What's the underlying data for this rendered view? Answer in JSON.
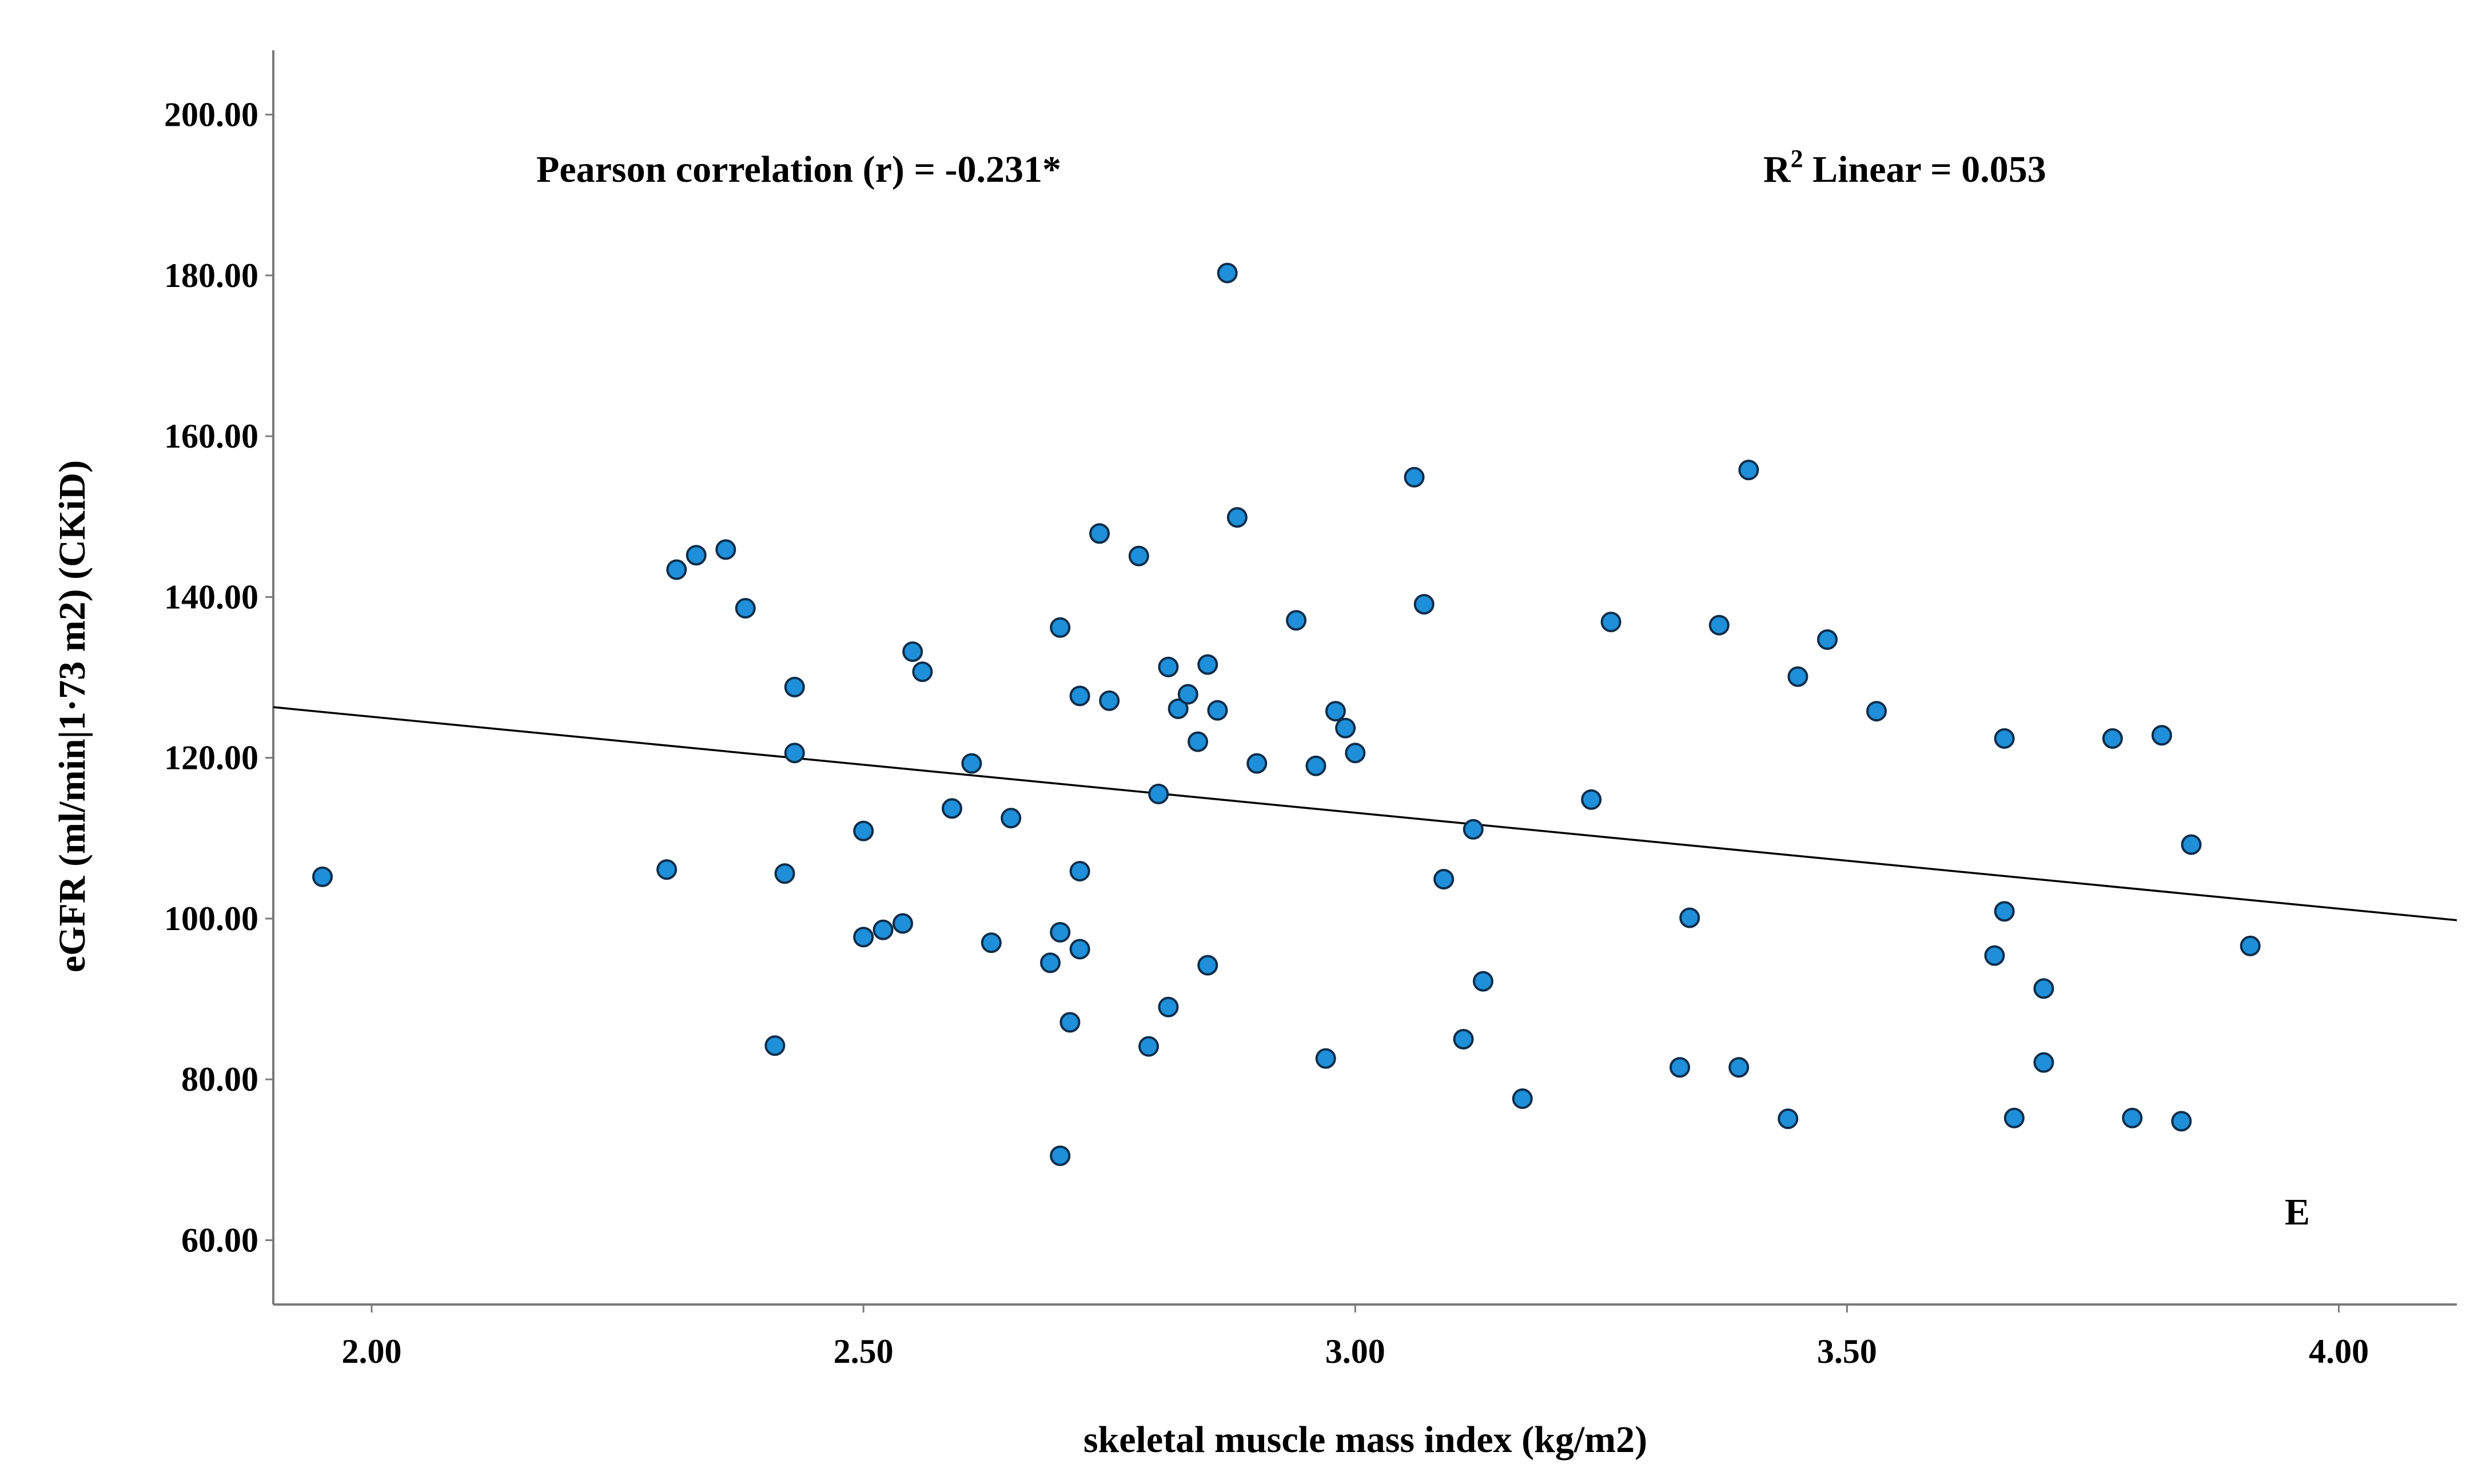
{
  "chart_data": {
    "type": "scatter",
    "title": "",
    "xlabel": "skeletal muscle mass index (kg/m2)",
    "ylabel": "eGFR (ml/min|1·73 m2) (CKiD)",
    "xlim": [
      1.9,
      4.12
    ],
    "ylim": [
      52,
      208
    ],
    "xticks": [
      2.0,
      2.5,
      3.0,
      3.5,
      4.0
    ],
    "yticks": [
      60,
      80,
      100,
      120,
      140,
      160,
      180,
      200
    ],
    "xtick_labels": [
      "2.00",
      "2.50",
      "3.00",
      "3.50",
      "4.00"
    ],
    "ytick_labels": [
      "60.00",
      "80.00",
      "100.00",
      "120.00",
      "140.00",
      "160.00",
      "180.00",
      "200.00"
    ],
    "annotations": {
      "pearson": "Pearson correlation (r) = -0.231*",
      "r2_prefix": "R",
      "r2_superscript": "2",
      "r2_rest": " Linear = 0.053",
      "panel": "E"
    },
    "fit_line": {
      "x": [
        1.9,
        4.12
      ],
      "y": [
        126.3,
        99.8
      ]
    },
    "marker_color": "#1E8FD8",
    "marker_edge": "#0D2D4A",
    "points": [
      {
        "x": 1.95,
        "y": 105.2
      },
      {
        "x": 2.3,
        "y": 106.1
      },
      {
        "x": 2.31,
        "y": 143.4
      },
      {
        "x": 2.33,
        "y": 145.2
      },
      {
        "x": 2.36,
        "y": 145.9
      },
      {
        "x": 2.38,
        "y": 138.6
      },
      {
        "x": 2.41,
        "y": 84.2
      },
      {
        "x": 2.42,
        "y": 105.6
      },
      {
        "x": 2.43,
        "y": 128.8
      },
      {
        "x": 2.43,
        "y": 120.6
      },
      {
        "x": 2.5,
        "y": 110.9
      },
      {
        "x": 2.5,
        "y": 97.7
      },
      {
        "x": 2.52,
        "y": 98.6
      },
      {
        "x": 2.54,
        "y": 99.4
      },
      {
        "x": 2.55,
        "y": 133.2
      },
      {
        "x": 2.56,
        "y": 130.7
      },
      {
        "x": 2.59,
        "y": 113.7
      },
      {
        "x": 2.61,
        "y": 119.3
      },
      {
        "x": 2.63,
        "y": 97.0
      },
      {
        "x": 2.65,
        "y": 112.5
      },
      {
        "x": 2.69,
        "y": 94.5
      },
      {
        "x": 2.7,
        "y": 136.2
      },
      {
        "x": 2.7,
        "y": 98.3
      },
      {
        "x": 2.7,
        "y": 70.5
      },
      {
        "x": 2.71,
        "y": 87.1
      },
      {
        "x": 2.72,
        "y": 127.7
      },
      {
        "x": 2.72,
        "y": 105.9
      },
      {
        "x": 2.72,
        "y": 96.2
      },
      {
        "x": 2.74,
        "y": 147.9
      },
      {
        "x": 2.75,
        "y": 127.1
      },
      {
        "x": 2.78,
        "y": 145.1
      },
      {
        "x": 2.79,
        "y": 84.1
      },
      {
        "x": 2.8,
        "y": 115.5
      },
      {
        "x": 2.81,
        "y": 131.3
      },
      {
        "x": 2.81,
        "y": 89.0
      },
      {
        "x": 2.82,
        "y": 126.1
      },
      {
        "x": 2.83,
        "y": 127.9
      },
      {
        "x": 2.84,
        "y": 122.0
      },
      {
        "x": 2.85,
        "y": 131.6
      },
      {
        "x": 2.85,
        "y": 94.2
      },
      {
        "x": 2.86,
        "y": 125.9
      },
      {
        "x": 2.87,
        "y": 180.3
      },
      {
        "x": 2.88,
        "y": 149.9
      },
      {
        "x": 2.9,
        "y": 119.3
      },
      {
        "x": 2.94,
        "y": 137.1
      },
      {
        "x": 2.96,
        "y": 119.0
      },
      {
        "x": 2.97,
        "y": 82.6
      },
      {
        "x": 2.98,
        "y": 125.8
      },
      {
        "x": 2.99,
        "y": 123.7
      },
      {
        "x": 3.0,
        "y": 120.6
      },
      {
        "x": 3.06,
        "y": 154.9
      },
      {
        "x": 3.07,
        "y": 139.1
      },
      {
        "x": 3.09,
        "y": 104.9
      },
      {
        "x": 3.11,
        "y": 85.0
      },
      {
        "x": 3.12,
        "y": 111.1
      },
      {
        "x": 3.13,
        "y": 92.2
      },
      {
        "x": 3.17,
        "y": 77.6
      },
      {
        "x": 3.24,
        "y": 114.8
      },
      {
        "x": 3.26,
        "y": 136.9
      },
      {
        "x": 3.33,
        "y": 81.5
      },
      {
        "x": 3.34,
        "y": 100.1
      },
      {
        "x": 3.37,
        "y": 136.5
      },
      {
        "x": 3.39,
        "y": 81.5
      },
      {
        "x": 3.4,
        "y": 155.8
      },
      {
        "x": 3.44,
        "y": 75.1
      },
      {
        "x": 3.45,
        "y": 130.1
      },
      {
        "x": 3.48,
        "y": 134.7
      },
      {
        "x": 3.53,
        "y": 125.8
      },
      {
        "x": 3.65,
        "y": 95.4
      },
      {
        "x": 3.66,
        "y": 122.4
      },
      {
        "x": 3.66,
        "y": 100.9
      },
      {
        "x": 3.67,
        "y": 75.2
      },
      {
        "x": 3.7,
        "y": 91.3
      },
      {
        "x": 3.7,
        "y": 82.1
      },
      {
        "x": 3.77,
        "y": 122.4
      },
      {
        "x": 3.79,
        "y": 75.2
      },
      {
        "x": 3.82,
        "y": 122.8
      },
      {
        "x": 3.84,
        "y": 74.8
      },
      {
        "x": 3.85,
        "y": 109.2
      },
      {
        "x": 3.91,
        "y": 96.6
      }
    ]
  }
}
